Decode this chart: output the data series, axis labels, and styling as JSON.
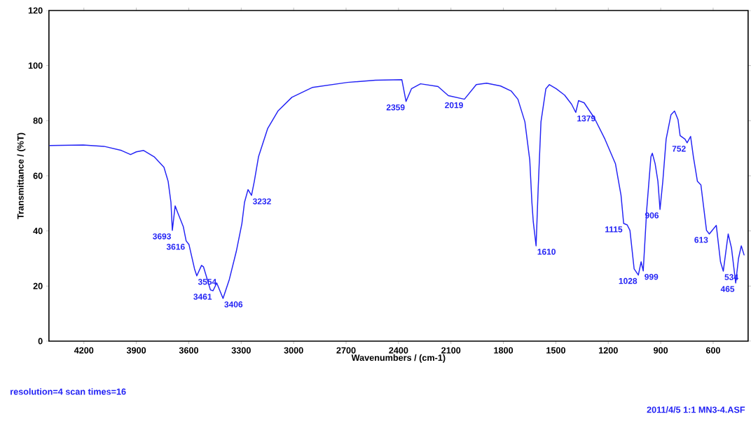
{
  "chart_data": {
    "type": "line",
    "xlabel": "Wavenumbers / (cm-1)",
    "ylabel": "Transmittance / (%T)",
    "xlim": [
      4400,
      400
    ],
    "ylim": [
      0,
      120
    ],
    "xticks": [
      4200,
      3900,
      3600,
      3300,
      3000,
      2700,
      2400,
      2100,
      1800,
      1500,
      1200,
      900,
      600
    ],
    "yticks": [
      0,
      20,
      40,
      60,
      80,
      100,
      120
    ],
    "grid": false,
    "marker": "none",
    "line_style": "solid",
    "series": [
      {
        "color": "#2323f5",
        "x": [
          4395,
          4204,
          4085,
          3985,
          3933,
          3900,
          3858,
          3798,
          3742,
          3718,
          3702,
          3694,
          3678,
          3663,
          3631,
          3615,
          3599,
          3567,
          3554,
          3527,
          3516,
          3476,
          3461,
          3440,
          3404,
          3368,
          3328,
          3296,
          3281,
          3261,
          3241,
          3225,
          3201,
          3149,
          3090,
          3010,
          2891,
          2692,
          2532,
          2381,
          2357,
          2326,
          2274,
          2174,
          2115,
          2023,
          1955,
          1896,
          1816,
          1756,
          1717,
          1677,
          1649,
          1637,
          1629,
          1613,
          1601,
          1585,
          1557,
          1537,
          1498,
          1450,
          1410,
          1386,
          1370,
          1338,
          1279,
          1219,
          1159,
          1127,
          1112,
          1092,
          1076,
          1052,
          1028,
          1012,
          1000,
          980,
          956,
          948,
          932,
          916,
          904,
          888,
          869,
          841,
          821,
          801,
          789,
          761,
          749,
          729,
          713,
          690,
          670,
          638,
          622,
          582,
          558,
          542,
          514,
          495,
          471,
          455,
          439,
          423
        ],
        "values": [
          71.0,
          71.2,
          70.7,
          69.2,
          67.7,
          68.7,
          69.2,
          66.9,
          63.1,
          58.0,
          50.4,
          40.2,
          49.1,
          46.6,
          41.5,
          36.4,
          35.1,
          26.2,
          23.7,
          27.5,
          27.0,
          18.6,
          18.3,
          21.1,
          15.5,
          22.4,
          32.6,
          42.7,
          50.4,
          55.0,
          52.9,
          58.0,
          66.9,
          77.1,
          83.5,
          88.5,
          92.1,
          93.9,
          94.7,
          94.9,
          87.0,
          91.6,
          93.4,
          92.4,
          89.1,
          87.8,
          93.1,
          93.6,
          92.6,
          90.8,
          87.8,
          79.6,
          65.6,
          50.4,
          43.3,
          34.6,
          55.5,
          79.6,
          91.6,
          93.1,
          91.6,
          89.3,
          86.0,
          83.0,
          87.3,
          86.5,
          80.9,
          73.3,
          64.4,
          52.9,
          42.7,
          42.2,
          40.2,
          26.2,
          24.0,
          28.8,
          25.5,
          47.8,
          66.9,
          68.2,
          64.4,
          58.0,
          47.8,
          58.0,
          73.3,
          82.2,
          83.5,
          80.4,
          74.6,
          73.3,
          72.0,
          74.3,
          66.9,
          58.0,
          56.7,
          40.2,
          38.9,
          42.0,
          28.8,
          25.4,
          38.9,
          33.8,
          21.1,
          30.0,
          34.6,
          31.3
        ]
      }
    ],
    "annotations": [
      "resolution=4 scan times=16",
      "2011/4/5 1:1 MN3-4.ASF",
      {
        "text": "3693",
        "x": 3694,
        "y": 40.2
      },
      {
        "text": "3616",
        "x": 3615,
        "y": 36.4
      },
      {
        "text": "3554",
        "x": 3554,
        "y": 23.7
      },
      {
        "text": "3461",
        "x": 3461,
        "y": 18.3
      },
      {
        "text": "3406",
        "x": 3404,
        "y": 15.5
      },
      {
        "text": "3232",
        "x": 3241,
        "y": 52.9
      },
      {
        "text": "2359",
        "x": 2357,
        "y": 87.0
      },
      {
        "text": "2019",
        "x": 2023,
        "y": 87.8
      },
      {
        "text": "1610",
        "x": 1613,
        "y": 34.6
      },
      {
        "text": "1379",
        "x": 1386,
        "y": 83.0
      },
      {
        "text": "1115",
        "x": 1112,
        "y": 42.7
      },
      {
        "text": "1028",
        "x": 1028,
        "y": 24.0
      },
      {
        "text": "999",
        "x": 1000,
        "y": 25.5
      },
      {
        "text": "906",
        "x": 904,
        "y": 47.8
      },
      {
        "text": "752",
        "x": 749,
        "y": 72.0
      },
      {
        "text": "613",
        "x": 622,
        "y": 38.9
      },
      {
        "text": "534",
        "x": 542,
        "y": 25.4
      },
      {
        "text": "465",
        "x": 471,
        "y": 21.1
      }
    ]
  }
}
